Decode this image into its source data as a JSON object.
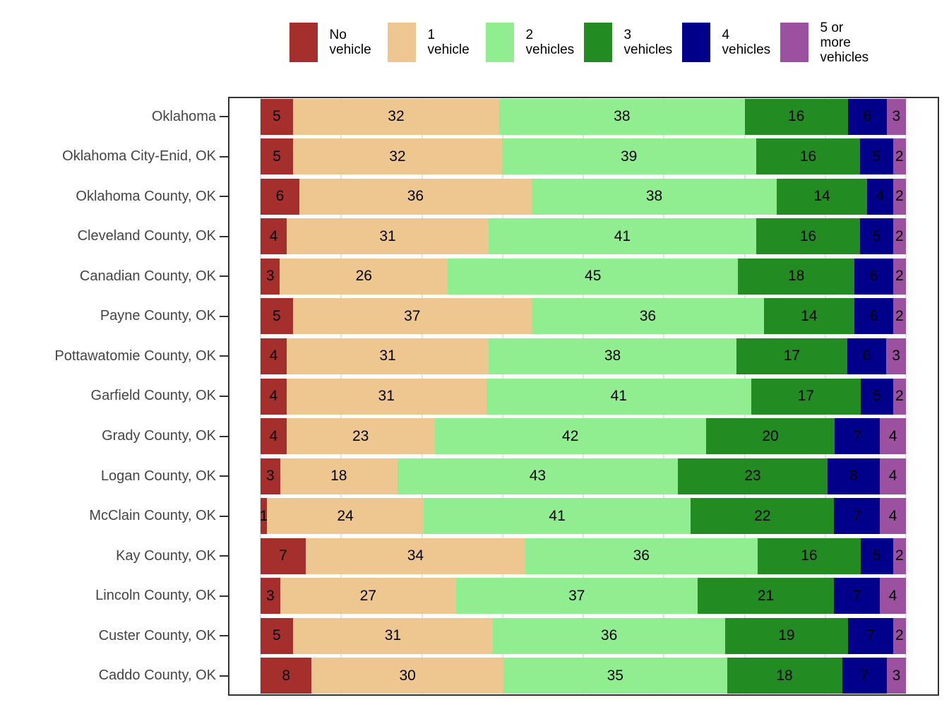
{
  "chart_data": {
    "type": "bar",
    "orientation": "horizontal",
    "stacked": true,
    "normalized": true,
    "value_unit": "percent",
    "title": "",
    "xlabel": "",
    "ylabel": "",
    "legend_position": "top",
    "x_axis": {
      "range": [
        0,
        100
      ],
      "gridlines_at_percent": [
        0,
        12.5,
        25,
        37.5,
        50,
        62.5,
        75,
        87.5,
        100
      ],
      "tick_labels_visible": false
    },
    "categories": [
      "Oklahoma",
      "Oklahoma City-Enid, OK",
      "Oklahoma County, OK",
      "Cleveland County, OK",
      "Canadian County, OK",
      "Payne County, OK",
      "Pottawatomie County, OK",
      "Garfield County, OK",
      "Grady County, OK",
      "Logan County, OK",
      "McClain County, OK",
      "Kay County, OK",
      "Lincoln County, OK",
      "Custer County, OK",
      "Caddo County, OK"
    ],
    "series": [
      {
        "name": "No vehicle",
        "color": "#A52F2C",
        "values": [
          5,
          5,
          6,
          4,
          3,
          5,
          4,
          4,
          4,
          3,
          1,
          7,
          3,
          5,
          8
        ]
      },
      {
        "name": "1 vehicle",
        "color": "#EEC690",
        "values": [
          32,
          32,
          36,
          31,
          26,
          37,
          31,
          31,
          23,
          18,
          24,
          34,
          27,
          31,
          30
        ]
      },
      {
        "name": "2 vehicles",
        "color": "#90EE90",
        "values": [
          38,
          39,
          38,
          41,
          45,
          36,
          38,
          41,
          42,
          43,
          41,
          36,
          37,
          36,
          35
        ]
      },
      {
        "name": "3 vehicles",
        "color": "#228B22",
        "values": [
          16,
          16,
          14,
          16,
          18,
          14,
          17,
          17,
          20,
          23,
          22,
          16,
          21,
          19,
          18
        ]
      },
      {
        "name": "4 vehicles",
        "color": "#00008B",
        "values": [
          6,
          5,
          4,
          5,
          6,
          6,
          6,
          5,
          7,
          8,
          7,
          5,
          7,
          7,
          7
        ]
      },
      {
        "name": "5 or more vehicles",
        "color": "#9B51A0",
        "values": [
          3,
          2,
          2,
          2,
          2,
          2,
          3,
          2,
          4,
          4,
          4,
          2,
          4,
          2,
          3
        ]
      }
    ],
    "bar_value_labels": "shown inside every segment"
  },
  "style_colors": {
    "gridline": "#E4E4E4",
    "plot_border": "#333333",
    "axis_label_text": "#444444",
    "segment_label_text": "#000000",
    "background": "#FFFFFF"
  }
}
